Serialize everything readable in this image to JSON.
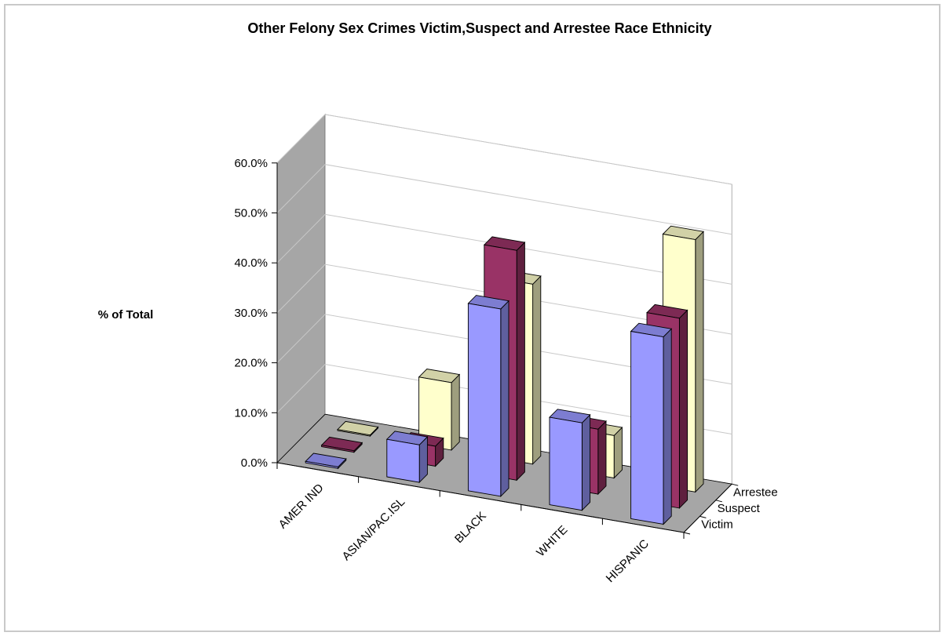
{
  "chart_data": {
    "type": "bar",
    "subtype": "3d-clustered-bar",
    "title": "Other Felony Sex Crimes Victim,Suspect and Arrestee Race Ethnicity",
    "ylabel": "% of Total",
    "xlabel": "",
    "ylim": [
      0,
      60
    ],
    "y_ticks": [
      "0.0%",
      "10.0%",
      "20.0%",
      "30.0%",
      "40.0%",
      "50.0%",
      "60.0%"
    ],
    "categories": [
      "AMER IND",
      "ASIAN/PAC.ISL",
      "BLACK",
      "WHITE",
      "HISPANIC"
    ],
    "series": [
      {
        "name": "Victim",
        "values": [
          0.3,
          7.5,
          37.5,
          17.5,
          37.5
        ],
        "color": "#9999ff"
      },
      {
        "name": "Suspect",
        "values": [
          0.3,
          4.0,
          46.0,
          13.0,
          38.0
        ],
        "color": "#993366"
      },
      {
        "name": "Arrestee",
        "values": [
          0.2,
          13.5,
          36.0,
          8.5,
          50.5
        ],
        "color": "#ffffcc"
      }
    ],
    "grid": true,
    "legend": "none"
  }
}
